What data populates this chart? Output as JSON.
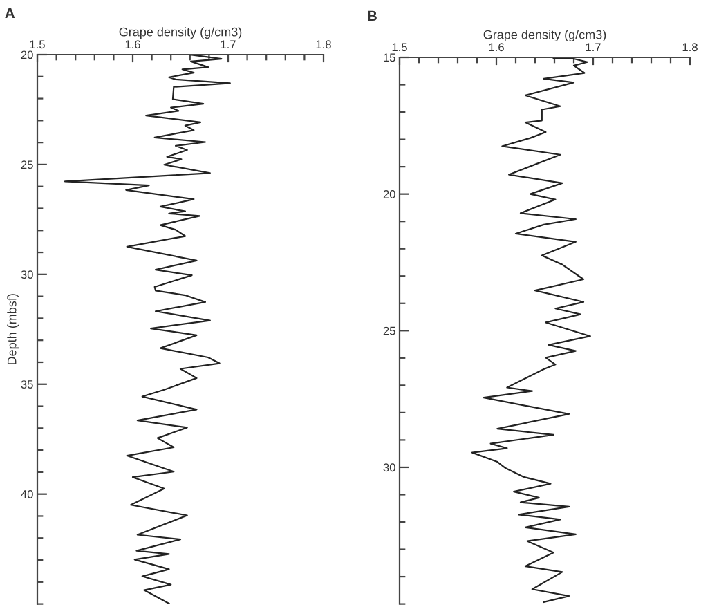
{
  "chart_data": [
    {
      "type": "line",
      "title": "A",
      "xlabel": "Grape density (g/cm3)",
      "ylabel": "Depth (mbsf)",
      "color": "#222222",
      "x": [
        1.66,
        1.693,
        1.661,
        1.679,
        1.652,
        1.664,
        1.638,
        1.645,
        1.702,
        1.643,
        1.642,
        1.674,
        1.64,
        1.648,
        1.614,
        1.671,
        1.655,
        1.664,
        1.623,
        1.676,
        1.645,
        1.657,
        1.636,
        1.651,
        1.633,
        1.681,
        1.529,
        1.617,
        1.593,
        1.664,
        1.629,
        1.655,
        1.638,
        1.67,
        1.629,
        1.645,
        1.655,
        1.594,
        1.667,
        1.624,
        1.662,
        1.623,
        1.624,
        1.655,
        1.676,
        1.624,
        1.681,
        1.619,
        1.667,
        1.629,
        1.679,
        1.691,
        1.65,
        1.667,
        1.633,
        1.61,
        1.667,
        1.605,
        1.657,
        1.626,
        1.643,
        1.594,
        1.643,
        1.6,
        1.633,
        1.598,
        1.657,
        1.605,
        1.65,
        1.604,
        1.638,
        1.602,
        1.638,
        1.61,
        1.64,
        1.612,
        1.638
      ],
      "values": [
        20.0,
        20.19,
        20.31,
        20.57,
        20.67,
        20.82,
        21.03,
        21.13,
        21.3,
        21.47,
        22.03,
        22.24,
        22.41,
        22.56,
        22.77,
        23.08,
        23.23,
        23.44,
        23.77,
        23.98,
        24.15,
        24.34,
        24.65,
        24.76,
        25.01,
        25.39,
        25.77,
        25.95,
        26.16,
        26.58,
        26.92,
        27.13,
        27.23,
        27.34,
        27.76,
        27.97,
        28.26,
        28.74,
        29.37,
        29.79,
        30.04,
        30.57,
        30.74,
        30.95,
        31.26,
        31.68,
        32.1,
        32.46,
        32.77,
        33.36,
        33.78,
        34.05,
        34.3,
        34.72,
        35.25,
        35.56,
        36.15,
        36.65,
        36.97,
        37.45,
        37.87,
        38.25,
        38.98,
        39.23,
        39.75,
        40.49,
        40.97,
        41.85,
        42.06,
        42.58,
        42.73,
        42.98,
        43.42,
        43.74,
        44.12,
        44.37,
        44.98
      ],
      "xlim": [
        1.5,
        1.8
      ],
      "xticks": [
        1.5,
        {
          "value": 1.52,
          "label": null
        },
        {
          "value": 1.54,
          "label": null
        },
        {
          "value": 1.56,
          "label": null
        },
        {
          "value": 1.58,
          "label": null
        },
        1.6,
        {
          "value": 1.62,
          "label": null
        },
        {
          "value": 1.64,
          "label": null
        },
        {
          "value": 1.66,
          "label": null
        },
        {
          "value": 1.68,
          "label": null
        },
        1.7,
        {
          "value": 1.72,
          "label": null
        },
        {
          "value": 1.74,
          "label": null
        },
        {
          "value": 1.76,
          "label": null
        },
        {
          "value": 1.78,
          "label": null
        },
        1.8
      ],
      "ylim": [
        45,
        20
      ],
      "yticks": [
        20,
        {
          "value": 21,
          "label": null
        },
        {
          "value": 22,
          "label": null
        },
        {
          "value": 23,
          "label": null
        },
        {
          "value": 24,
          "label": null
        },
        25,
        {
          "value": 26,
          "label": null
        },
        {
          "value": 27,
          "label": null
        },
        {
          "value": 28,
          "label": null
        },
        {
          "value": 29,
          "label": null
        },
        30,
        {
          "value": 31,
          "label": null
        },
        {
          "value": 32,
          "label": null
        },
        {
          "value": 33,
          "label": null
        },
        {
          "value": 34,
          "label": null
        },
        35,
        {
          "value": 36,
          "label": null
        },
        {
          "value": 37,
          "label": null
        },
        {
          "value": 38,
          "label": null
        },
        {
          "value": 39,
          "label": null
        },
        40,
        {
          "value": 41,
          "label": null
        },
        {
          "value": 42,
          "label": null
        },
        {
          "value": 43,
          "label": null
        },
        {
          "value": 44,
          "label": null
        },
        {
          "value": 45,
          "label": null
        }
      ]
    },
    {
      "type": "line",
      "title": "B",
      "xlabel": "Grape density (g/cm3)",
      "color": "#222222",
      "x": [
        1.659,
        1.68,
        1.694,
        1.68,
        1.691,
        1.649,
        1.68,
        1.63,
        1.666,
        1.647,
        1.647,
        1.63,
        1.651,
        1.635,
        1.606,
        1.666,
        1.613,
        1.668,
        1.635,
        1.661,
        1.625,
        1.682,
        1.649,
        1.62,
        1.682,
        1.647,
        1.668,
        1.69,
        1.64,
        1.69,
        1.661,
        1.687,
        1.651,
        1.697,
        1.654,
        1.682,
        1.651,
        1.661,
        1.649,
        1.611,
        1.637,
        1.587,
        1.675,
        1.601,
        1.659,
        1.594,
        1.611,
        1.575,
        1.601,
        1.609,
        1.628,
        1.656,
        1.618,
        1.644,
        1.625,
        1.675,
        1.623,
        1.666,
        1.63,
        1.682,
        1.632,
        1.659,
        1.63,
        1.668,
        1.637,
        1.675,
        1.649
      ],
      "values": [
        15.05,
        15.05,
        15.17,
        15.3,
        15.57,
        15.78,
        15.92,
        16.39,
        16.79,
        16.91,
        17.31,
        17.38,
        17.73,
        17.95,
        18.25,
        18.56,
        19.29,
        19.6,
        20.0,
        20.2,
        20.7,
        20.92,
        21.12,
        21.45,
        21.75,
        22.25,
        22.58,
        23.12,
        23.53,
        23.95,
        24.19,
        24.4,
        24.7,
        25.2,
        25.52,
        25.74,
        25.99,
        26.24,
        26.41,
        27.08,
        27.21,
        27.45,
        28.05,
        28.59,
        28.81,
        29.13,
        29.3,
        29.46,
        29.8,
        30.02,
        30.35,
        30.6,
        30.89,
        31.11,
        31.28,
        31.44,
        31.73,
        31.91,
        32.2,
        32.45,
        32.7,
        33.12,
        33.62,
        33.83,
        34.46,
        34.71,
        34.93
      ],
      "xlim": [
        1.5,
        1.8
      ],
      "xticks": [
        1.5,
        {
          "value": 1.52,
          "label": null
        },
        {
          "value": 1.54,
          "label": null
        },
        {
          "value": 1.56,
          "label": null
        },
        {
          "value": 1.58,
          "label": null
        },
        1.6,
        {
          "value": 1.62,
          "label": null
        },
        {
          "value": 1.64,
          "label": null
        },
        {
          "value": 1.66,
          "label": null
        },
        {
          "value": 1.68,
          "label": null
        },
        1.7,
        {
          "value": 1.72,
          "label": null
        },
        {
          "value": 1.74,
          "label": null
        },
        {
          "value": 1.76,
          "label": null
        },
        {
          "value": 1.78,
          "label": null
        },
        1.8
      ],
      "ylim": [
        35,
        15
      ],
      "yticks": [
        15,
        {
          "value": 16,
          "label": null
        },
        {
          "value": 17,
          "label": null
        },
        {
          "value": 18,
          "label": null
        },
        {
          "value": 19,
          "label": null
        },
        20,
        {
          "value": 21,
          "label": null
        },
        {
          "value": 22,
          "label": null
        },
        {
          "value": 23,
          "label": null
        },
        {
          "value": 24,
          "label": null
        },
        25,
        {
          "value": 26,
          "label": null
        },
        {
          "value": 27,
          "label": null
        },
        {
          "value": 28,
          "label": null
        },
        {
          "value": 29,
          "label": null
        },
        30,
        {
          "value": 31,
          "label": null
        },
        {
          "value": 32,
          "label": null
        },
        {
          "value": 33,
          "label": null
        },
        {
          "value": 34,
          "label": null
        },
        {
          "value": 35,
          "label": null
        }
      ]
    }
  ]
}
